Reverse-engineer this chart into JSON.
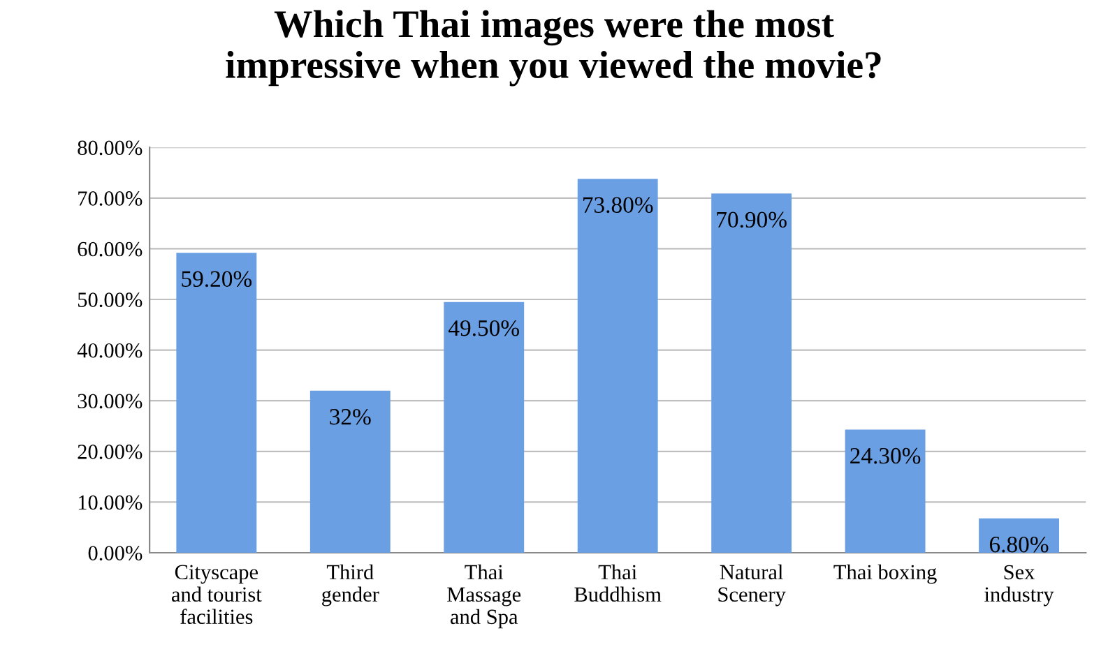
{
  "chart_data": {
    "type": "bar",
    "title": "Which Thai images were the most\nimpressive when you viewed the movie?",
    "categories": [
      "Cityscape\nand tourist\nfacilities",
      "Third\ngender",
      "Thai\nMassage\nand Spa",
      "Thai\nBuddhism",
      "Natural\nScenery",
      "Thai boxing",
      "Sex\nindustry"
    ],
    "values": [
      59.2,
      32,
      49.5,
      73.8,
      70.9,
      24.3,
      6.8
    ],
    "value_labels": [
      "59.20%",
      "32%",
      "49.50%",
      "73.80%",
      "70.90%",
      "24.30%",
      "6.80%"
    ],
    "color": "#6a9fe3",
    "ylim": [
      0,
      80
    ],
    "yticks": [
      {
        "value": 0,
        "label": "0.00%"
      },
      {
        "value": 10,
        "label": "10.00%"
      },
      {
        "value": 20,
        "label": "20.00%"
      },
      {
        "value": 30,
        "label": "30.00%"
      },
      {
        "value": 40,
        "label": "40.00%"
      },
      {
        "value": 50,
        "label": "50.00%"
      },
      {
        "value": 60,
        "label": "60.00%"
      },
      {
        "value": 70,
        "label": "70.00%"
      },
      {
        "value": 80,
        "label": "80.00%"
      }
    ],
    "grid": "y"
  }
}
